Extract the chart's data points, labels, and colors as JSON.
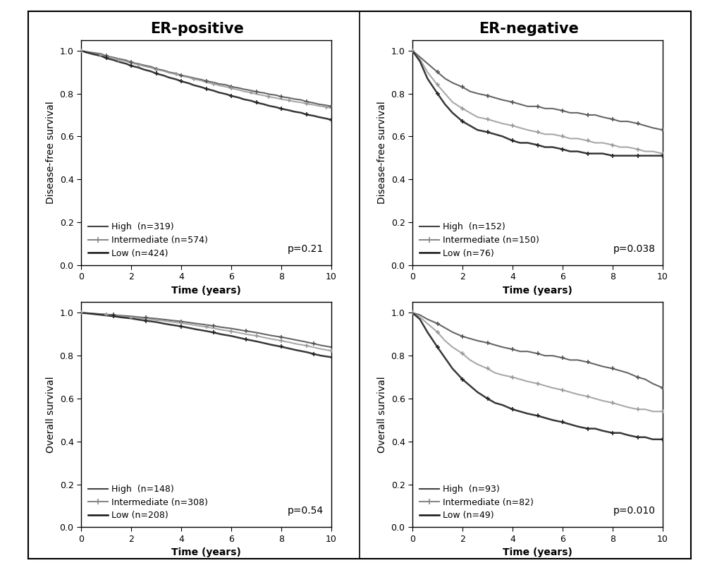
{
  "panels": [
    {
      "ylabel": "Disease-free survival",
      "xlabel": "Time (years)",
      "p_value": "p=0.21",
      "legend": [
        {
          "label": "High  (n=319)",
          "color": "#444444",
          "lw": 1.5,
          "style": "solid",
          "marker": "+"
        },
        {
          "label": "Intermediate (n=574)",
          "color": "#888888",
          "lw": 1.5,
          "style": "plus_line",
          "marker": "+"
        },
        {
          "label": "Low (n=424)",
          "color": "#111111",
          "lw": 1.8,
          "style": "solid",
          "marker": "+"
        }
      ],
      "curves": [
        {
          "color": "#555555",
          "lw": 1.5,
          "style": "solid",
          "marker_interval": 4,
          "x": [
            0,
            0.2,
            0.5,
            0.8,
            1,
            1.3,
            1.5,
            1.8,
            2,
            2.3,
            2.5,
            2.8,
            3,
            3.3,
            3.5,
            3.8,
            4,
            4.3,
            4.5,
            4.8,
            5,
            5.3,
            5.5,
            5.8,
            6,
            6.3,
            6.5,
            6.8,
            7,
            7.3,
            7.5,
            7.8,
            8,
            8.3,
            8.5,
            8.8,
            9,
            9.3,
            9.5,
            9.8,
            10
          ],
          "y": [
            1.0,
            0.995,
            0.99,
            0.985,
            0.975,
            0.968,
            0.962,
            0.955,
            0.945,
            0.938,
            0.932,
            0.925,
            0.915,
            0.908,
            0.9,
            0.893,
            0.885,
            0.878,
            0.872,
            0.865,
            0.858,
            0.852,
            0.845,
            0.84,
            0.832,
            0.826,
            0.82,
            0.814,
            0.808,
            0.803,
            0.797,
            0.792,
            0.785,
            0.78,
            0.775,
            0.77,
            0.762,
            0.756,
            0.75,
            0.745,
            0.74
          ]
        },
        {
          "color": "#999999",
          "lw": 1.5,
          "style": "plus_line",
          "marker_interval": 3,
          "x": [
            0,
            0.2,
            0.5,
            0.8,
            1,
            1.3,
            1.5,
            1.8,
            2,
            2.3,
            2.5,
            2.8,
            3,
            3.3,
            3.5,
            3.8,
            4,
            4.3,
            4.5,
            4.8,
            5,
            5.3,
            5.5,
            5.8,
            6,
            6.3,
            6.5,
            6.8,
            7,
            7.3,
            7.5,
            7.8,
            8,
            8.3,
            8.5,
            8.8,
            9,
            9.3,
            9.5,
            9.8,
            10
          ],
          "y": [
            1.0,
            0.993,
            0.987,
            0.98,
            0.972,
            0.965,
            0.958,
            0.95,
            0.942,
            0.935,
            0.928,
            0.92,
            0.912,
            0.905,
            0.897,
            0.89,
            0.882,
            0.875,
            0.868,
            0.86,
            0.852,
            0.845,
            0.838,
            0.831,
            0.824,
            0.817,
            0.81,
            0.804,
            0.797,
            0.791,
            0.785,
            0.779,
            0.773,
            0.768,
            0.763,
            0.758,
            0.752,
            0.747,
            0.742,
            0.737,
            0.732
          ]
        },
        {
          "color": "#222222",
          "lw": 1.8,
          "style": "solid",
          "marker_interval": 4,
          "x": [
            0,
            0.2,
            0.5,
            0.8,
            1,
            1.3,
            1.5,
            1.8,
            2,
            2.3,
            2.5,
            2.8,
            3,
            3.3,
            3.5,
            3.8,
            4,
            4.3,
            4.5,
            4.8,
            5,
            5.3,
            5.5,
            5.8,
            6,
            6.3,
            6.5,
            6.8,
            7,
            7.3,
            7.5,
            7.8,
            8,
            8.3,
            8.5,
            8.8,
            9,
            9.3,
            9.5,
            9.8,
            10
          ],
          "y": [
            1.0,
            0.992,
            0.983,
            0.975,
            0.965,
            0.956,
            0.948,
            0.939,
            0.929,
            0.921,
            0.912,
            0.903,
            0.893,
            0.884,
            0.875,
            0.866,
            0.857,
            0.848,
            0.839,
            0.83,
            0.822,
            0.813,
            0.805,
            0.797,
            0.789,
            0.781,
            0.773,
            0.766,
            0.758,
            0.75,
            0.743,
            0.736,
            0.729,
            0.722,
            0.716,
            0.71,
            0.702,
            0.696,
            0.69,
            0.683,
            0.677
          ]
        }
      ]
    },
    {
      "ylabel": "Disease-free survival",
      "xlabel": "Time (years)",
      "p_value": "p=0.038",
      "legend": [
        {
          "label": "High  (n=152)",
          "color": "#444444",
          "lw": 1.5,
          "style": "solid",
          "marker": "+"
        },
        {
          "label": "Intermediate (n=150)",
          "color": "#888888",
          "lw": 1.5,
          "style": "plus_line",
          "marker": "+"
        },
        {
          "label": "Low (n=76)",
          "color": "#111111",
          "lw": 1.8,
          "style": "solid",
          "marker": "+"
        }
      ],
      "curves": [
        {
          "color": "#555555",
          "lw": 1.5,
          "style": "solid",
          "marker_interval": 3,
          "x": [
            0,
            0.3,
            0.6,
            1,
            1.3,
            1.6,
            2,
            2.3,
            2.6,
            3,
            3.3,
            3.6,
            4,
            4.3,
            4.6,
            5,
            5.3,
            5.6,
            6,
            6.3,
            6.6,
            7,
            7.3,
            7.6,
            8,
            8.3,
            8.6,
            9,
            9.3,
            9.6,
            10
          ],
          "y": [
            1.0,
            0.97,
            0.94,
            0.9,
            0.87,
            0.85,
            0.83,
            0.81,
            0.8,
            0.79,
            0.78,
            0.77,
            0.76,
            0.75,
            0.74,
            0.74,
            0.73,
            0.73,
            0.72,
            0.71,
            0.71,
            0.7,
            0.7,
            0.69,
            0.68,
            0.67,
            0.67,
            0.66,
            0.65,
            0.64,
            0.63
          ]
        },
        {
          "color": "#999999",
          "lw": 1.5,
          "style": "plus_line",
          "marker_interval": 3,
          "x": [
            0,
            0.3,
            0.6,
            1,
            1.3,
            1.6,
            2,
            2.3,
            2.6,
            3,
            3.3,
            3.6,
            4,
            4.3,
            4.6,
            5,
            5.3,
            5.6,
            6,
            6.3,
            6.6,
            7,
            7.3,
            7.6,
            8,
            8.3,
            8.6,
            9,
            9.3,
            9.6,
            10
          ],
          "y": [
            1.0,
            0.96,
            0.9,
            0.84,
            0.8,
            0.76,
            0.73,
            0.71,
            0.69,
            0.68,
            0.67,
            0.66,
            0.65,
            0.64,
            0.63,
            0.62,
            0.61,
            0.61,
            0.6,
            0.59,
            0.59,
            0.58,
            0.57,
            0.57,
            0.56,
            0.55,
            0.55,
            0.54,
            0.53,
            0.53,
            0.52
          ]
        },
        {
          "color": "#222222",
          "lw": 1.8,
          "style": "solid",
          "marker_interval": 3,
          "x": [
            0,
            0.3,
            0.6,
            1,
            1.3,
            1.6,
            2,
            2.3,
            2.6,
            3,
            3.3,
            3.6,
            4,
            4.3,
            4.6,
            5,
            5.3,
            5.6,
            6,
            6.3,
            6.6,
            7,
            7.3,
            7.6,
            8,
            8.3,
            8.6,
            9,
            9.3,
            9.6,
            10
          ],
          "y": [
            1.0,
            0.95,
            0.87,
            0.8,
            0.75,
            0.71,
            0.67,
            0.65,
            0.63,
            0.62,
            0.61,
            0.6,
            0.58,
            0.57,
            0.57,
            0.56,
            0.55,
            0.55,
            0.54,
            0.53,
            0.53,
            0.52,
            0.52,
            0.52,
            0.51,
            0.51,
            0.51,
            0.51,
            0.51,
            0.51,
            0.51
          ]
        }
      ]
    },
    {
      "ylabel": "Overall survival",
      "xlabel": "Time (years)",
      "p_value": "p=0.54",
      "legend": [
        {
          "label": "High  (n=148)",
          "color": "#444444",
          "lw": 1.5,
          "style": "solid",
          "marker": "+"
        },
        {
          "label": "Intermediate (n=308)",
          "color": "#888888",
          "lw": 1.5,
          "style": "plus_line",
          "marker": "+"
        },
        {
          "label": "Low (n=208)",
          "color": "#111111",
          "lw": 1.8,
          "style": "solid",
          "marker": "+"
        }
      ],
      "curves": [
        {
          "color": "#555555",
          "lw": 1.5,
          "style": "solid",
          "marker_interval": 4,
          "x": [
            0,
            0.3,
            0.6,
            1,
            1.3,
            1.6,
            2,
            2.3,
            2.6,
            3,
            3.3,
            3.6,
            4,
            4.3,
            4.6,
            5,
            5.3,
            5.6,
            6,
            6.3,
            6.6,
            7,
            7.3,
            7.6,
            8,
            8.3,
            8.6,
            9,
            9.3,
            9.6,
            10
          ],
          "y": [
            1.0,
            0.998,
            0.996,
            0.993,
            0.99,
            0.987,
            0.984,
            0.98,
            0.977,
            0.973,
            0.969,
            0.965,
            0.96,
            0.955,
            0.95,
            0.944,
            0.939,
            0.933,
            0.927,
            0.921,
            0.915,
            0.908,
            0.901,
            0.894,
            0.887,
            0.88,
            0.873,
            0.864,
            0.856,
            0.848,
            0.84
          ]
        },
        {
          "color": "#999999",
          "lw": 1.5,
          "style": "plus_line",
          "marker_interval": 3,
          "x": [
            0,
            0.3,
            0.6,
            1,
            1.3,
            1.6,
            2,
            2.3,
            2.6,
            3,
            3.3,
            3.6,
            4,
            4.3,
            4.6,
            5,
            5.3,
            5.6,
            6,
            6.3,
            6.6,
            7,
            7.3,
            7.6,
            8,
            8.3,
            8.6,
            9,
            9.3,
            9.6,
            10
          ],
          "y": [
            1.0,
            0.998,
            0.995,
            0.991,
            0.988,
            0.984,
            0.98,
            0.976,
            0.972,
            0.967,
            0.963,
            0.958,
            0.952,
            0.947,
            0.941,
            0.934,
            0.928,
            0.921,
            0.914,
            0.907,
            0.9,
            0.893,
            0.885,
            0.878,
            0.87,
            0.863,
            0.855,
            0.847,
            0.839,
            0.831,
            0.823
          ]
        },
        {
          "color": "#222222",
          "lw": 1.8,
          "style": "solid",
          "marker_interval": 4,
          "x": [
            0,
            0.3,
            0.6,
            1,
            1.3,
            1.6,
            2,
            2.3,
            2.6,
            3,
            3.3,
            3.6,
            4,
            4.3,
            4.6,
            5,
            5.3,
            5.6,
            6,
            6.3,
            6.6,
            7,
            7.3,
            7.6,
            8,
            8.3,
            8.6,
            9,
            9.3,
            9.6,
            10
          ],
          "y": [
            1.0,
            0.997,
            0.993,
            0.988,
            0.984,
            0.979,
            0.974,
            0.968,
            0.963,
            0.957,
            0.95,
            0.944,
            0.937,
            0.93,
            0.923,
            0.915,
            0.908,
            0.9,
            0.892,
            0.884,
            0.876,
            0.867,
            0.859,
            0.851,
            0.842,
            0.834,
            0.826,
            0.817,
            0.808,
            0.8,
            0.793
          ]
        }
      ]
    },
    {
      "ylabel": "Overall survival",
      "xlabel": "Time (years)",
      "p_value": "p=0.010",
      "legend": [
        {
          "label": "High  (n=93)",
          "color": "#444444",
          "lw": 1.5,
          "style": "solid",
          "marker": "+"
        },
        {
          "label": "Intermediate (n=82)",
          "color": "#888888",
          "lw": 1.5,
          "style": "plus_line",
          "marker": "+"
        },
        {
          "label": "Low (n=49)",
          "color": "#111111",
          "lw": 1.8,
          "style": "solid",
          "marker": "+"
        }
      ],
      "curves": [
        {
          "color": "#555555",
          "lw": 1.5,
          "style": "solid",
          "marker_interval": 3,
          "x": [
            0,
            0.3,
            0.6,
            1,
            1.3,
            1.6,
            2,
            2.3,
            2.6,
            3,
            3.3,
            3.6,
            4,
            4.3,
            4.6,
            5,
            5.3,
            5.6,
            6,
            6.3,
            6.6,
            7,
            7.3,
            7.6,
            8,
            8.3,
            8.6,
            9,
            9.3,
            9.6,
            10
          ],
          "y": [
            1.0,
            0.99,
            0.97,
            0.95,
            0.93,
            0.91,
            0.89,
            0.88,
            0.87,
            0.86,
            0.85,
            0.84,
            0.83,
            0.82,
            0.82,
            0.81,
            0.8,
            0.8,
            0.79,
            0.78,
            0.78,
            0.77,
            0.76,
            0.75,
            0.74,
            0.73,
            0.72,
            0.7,
            0.69,
            0.67,
            0.65
          ]
        },
        {
          "color": "#999999",
          "lw": 1.5,
          "style": "plus_line",
          "marker_interval": 3,
          "x": [
            0,
            0.3,
            0.6,
            1,
            1.3,
            1.6,
            2,
            2.3,
            2.6,
            3,
            3.3,
            3.6,
            4,
            4.3,
            4.6,
            5,
            5.3,
            5.6,
            6,
            6.3,
            6.6,
            7,
            7.3,
            7.6,
            8,
            8.3,
            8.6,
            9,
            9.3,
            9.6,
            10
          ],
          "y": [
            1.0,
            0.98,
            0.95,
            0.91,
            0.87,
            0.84,
            0.81,
            0.78,
            0.76,
            0.74,
            0.72,
            0.71,
            0.7,
            0.69,
            0.68,
            0.67,
            0.66,
            0.65,
            0.64,
            0.63,
            0.62,
            0.61,
            0.6,
            0.59,
            0.58,
            0.57,
            0.56,
            0.55,
            0.55,
            0.54,
            0.54
          ]
        },
        {
          "color": "#222222",
          "lw": 1.8,
          "style": "solid",
          "marker_interval": 3,
          "x": [
            0,
            0.3,
            0.6,
            1,
            1.3,
            1.6,
            2,
            2.3,
            2.6,
            3,
            3.3,
            3.6,
            4,
            4.3,
            4.6,
            5,
            5.3,
            5.6,
            6,
            6.3,
            6.6,
            7,
            7.3,
            7.6,
            8,
            8.3,
            8.6,
            9,
            9.3,
            9.6,
            10
          ],
          "y": [
            1.0,
            0.97,
            0.91,
            0.84,
            0.79,
            0.74,
            0.69,
            0.66,
            0.63,
            0.6,
            0.58,
            0.57,
            0.55,
            0.54,
            0.53,
            0.52,
            0.51,
            0.5,
            0.49,
            0.48,
            0.47,
            0.46,
            0.46,
            0.45,
            0.44,
            0.44,
            0.43,
            0.42,
            0.42,
            0.41,
            0.41
          ]
        }
      ]
    }
  ],
  "col_titles": [
    "ER-positive",
    "ER-negative"
  ],
  "bg_color": "#ffffff",
  "outer_bg": "#ffffff",
  "title_fontsize": 15,
  "axis_label_fontsize": 10,
  "tick_fontsize": 9,
  "legend_fontsize": 9,
  "pval_fontsize": 10
}
